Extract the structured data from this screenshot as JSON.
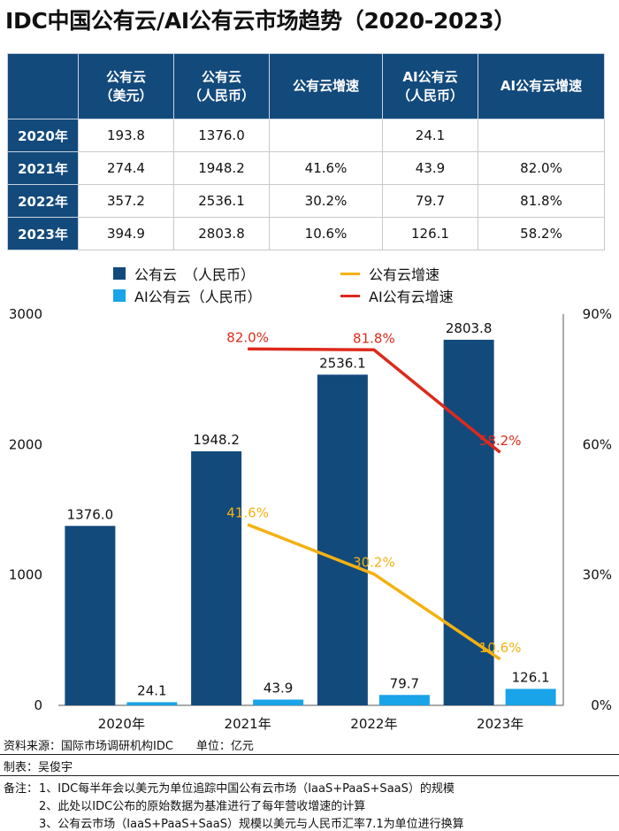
{
  "title": "IDC中国公有云/AI公有云市场趋势（2020-2023）",
  "table": {
    "headers": [
      "",
      "公有云\n（美元）",
      "公有云\n（人民币）",
      "公有云增速",
      "AI公有云\n（人民币）",
      "AI公有云增速"
    ],
    "rows": [
      [
        "2020年",
        "193.8",
        "1376.0",
        "",
        "24.1",
        ""
      ],
      [
        "2021年",
        "274.4",
        "1948.2",
        "41.6%",
        "43.9",
        "82.0%"
      ],
      [
        "2022年",
        "357.2",
        "2536.1",
        "30.2%",
        "79.7",
        "81.8%"
      ],
      [
        "2023年",
        "394.9",
        "2803.8",
        "10.6%",
        "126.1",
        "58.2%"
      ]
    ]
  },
  "legend": {
    "public_cloud": "公有云　（人民币）",
    "ai_cloud": "AI公有云（人民币）",
    "public_growth": "公有云增速",
    "ai_growth": "AI公有云增速"
  },
  "colors": {
    "header_bg": "#134a7c",
    "public_cloud_bar": "#134a7c",
    "ai_cloud_bar": "#19a3e8",
    "public_growth_line": "#f5b111",
    "ai_growth_line": "#dd2a1c"
  },
  "chart_data": {
    "type": "bar",
    "categories": [
      "2020年",
      "2021年",
      "2022年",
      "2023年"
    ],
    "series": [
      {
        "name": "公有云　（人民币）",
        "type": "bar",
        "axis": "left",
        "values": [
          1376.0,
          1948.2,
          2536.1,
          2803.8
        ],
        "labels": [
          "1376.0",
          "1948.2",
          "2536.1",
          "2803.8"
        ]
      },
      {
        "name": "AI公有云（人民币）",
        "type": "bar",
        "axis": "left",
        "values": [
          24.1,
          43.9,
          79.7,
          126.1
        ],
        "labels": [
          "24.1",
          "43.9",
          "79.7",
          "126.1"
        ]
      },
      {
        "name": "公有云增速",
        "type": "line",
        "axis": "right",
        "values": [
          null,
          41.6,
          30.2,
          10.6
        ],
        "labels": [
          "",
          "41.6%",
          "30.2%",
          "10.6%"
        ]
      },
      {
        "name": "AI公有云增速",
        "type": "line",
        "axis": "right",
        "values": [
          null,
          82.0,
          81.8,
          58.2
        ],
        "labels": [
          "",
          "82.0%",
          "81.8%",
          "58.2%"
        ]
      }
    ],
    "ylim_left": [
      0,
      3000
    ],
    "yticks_left": [
      "0",
      "1000",
      "2000",
      "3000"
    ],
    "ylim_right": [
      0,
      90
    ],
    "yticks_right": [
      "0%",
      "30%",
      "60%",
      "90%"
    ],
    "grid": false,
    "legend_position": "top"
  },
  "footer": {
    "source": "资料来源：国际市场调研机构IDC　　单位：亿元",
    "author": "制表：吴俊宇",
    "notes_label": "备注：",
    "notes": [
      "1、IDC每半年会以美元为单位追踪中国公有云市场（IaaS+PaaS+SaaS）的规模",
      "2、此处以IDC公布的原始数据为基准进行了每年营收增速的计算",
      "3、公有云市场（IaaS+PaaS+SaaS）规模以美元与人民币汇率7.1为单位进行换算"
    ]
  }
}
